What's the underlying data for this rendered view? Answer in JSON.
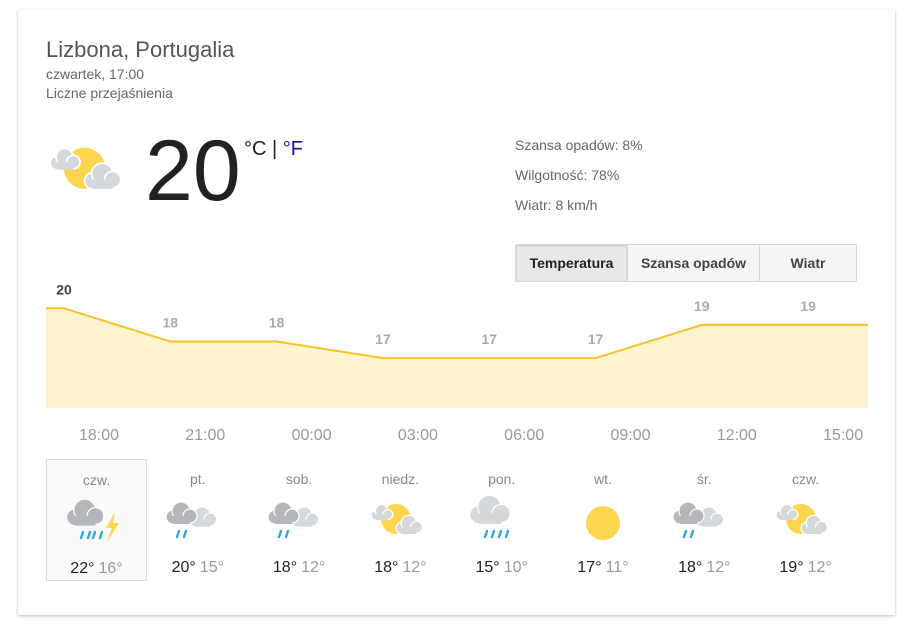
{
  "location": "Lizbona, Portugalia",
  "datetime": "czwartek, 17:00",
  "condition": "Liczne przejaśnienia",
  "current": {
    "icon": "partly-cloudy",
    "temperature": 20,
    "unit_c": "°C",
    "separator": "|",
    "unit_f": "°F"
  },
  "details": [
    "Szansa opadów: 8%",
    "Wilgotność: 78%",
    "Wiatr: 8 km/h"
  ],
  "tabs": [
    "Temperatura",
    "Szansa opadów",
    "Wiatr"
  ],
  "active_tab": 0,
  "hourly": {
    "type": "area",
    "color": "#fbc02d",
    "fill": "#fef5cf",
    "times": [
      "18:00",
      "21:00",
      "00:00",
      "03:00",
      "06:00",
      "09:00",
      "12:00",
      "15:00"
    ],
    "values": [
      20,
      18,
      18,
      17,
      17,
      17,
      19,
      19
    ],
    "ylim": [
      14,
      20.5
    ]
  },
  "daily": [
    {
      "day": "czw.",
      "icon": "storm",
      "high": "22°",
      "low": "16°"
    },
    {
      "day": "pt.",
      "icon": "rain-clouds",
      "high": "20°",
      "low": "15°"
    },
    {
      "day": "sob.",
      "icon": "rain-clouds",
      "high": "18°",
      "low": "12°"
    },
    {
      "day": "niedz.",
      "icon": "partly-cloudy",
      "high": "18°",
      "low": "12°"
    },
    {
      "day": "pon.",
      "icon": "showers",
      "high": "15°",
      "low": "10°"
    },
    {
      "day": "wt.",
      "icon": "sun",
      "high": "17°",
      "low": "11°"
    },
    {
      "day": "śr.",
      "icon": "rain-clouds",
      "high": "18°",
      "low": "12°"
    },
    {
      "day": "czw.",
      "icon": "partly-cloudy",
      "high": "19°",
      "low": "12°"
    }
  ],
  "selected_day": 0
}
